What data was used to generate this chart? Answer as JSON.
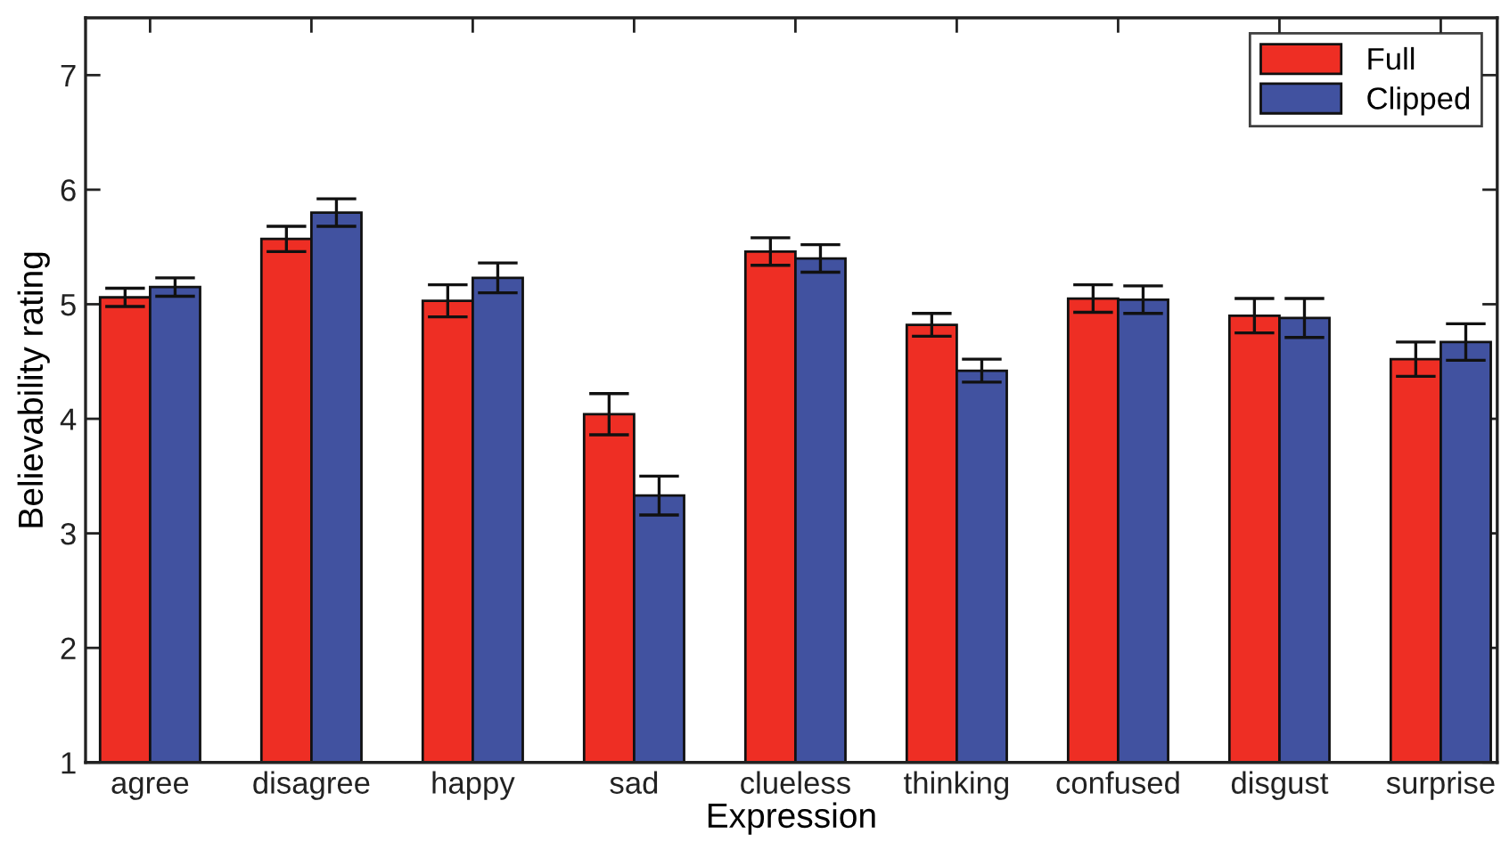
{
  "chart_data": {
    "type": "bar",
    "xlabel": "Expression",
    "ylabel": "Believability rating",
    "categories": [
      "agree",
      "disagree",
      "happy",
      "sad",
      "clueless",
      "thinking",
      "confused",
      "disgust",
      "surprise"
    ],
    "series": [
      {
        "name": "Full",
        "color": "#ee2e24",
        "values": [
          5.06,
          5.57,
          5.03,
          4.04,
          5.46,
          4.82,
          5.05,
          4.9,
          4.52
        ],
        "errors": [
          0.08,
          0.11,
          0.14,
          0.18,
          0.12,
          0.1,
          0.12,
          0.15,
          0.15
        ]
      },
      {
        "name": "Clipped",
        "color": "#4152a0",
        "values": [
          5.15,
          5.8,
          5.23,
          3.33,
          5.4,
          4.42,
          5.04,
          4.88,
          4.67
        ],
        "errors": [
          0.08,
          0.12,
          0.13,
          0.17,
          0.12,
          0.1,
          0.12,
          0.17,
          0.16
        ]
      }
    ],
    "ylim": [
      1,
      7.5
    ],
    "yticks": [
      1,
      2,
      3,
      4,
      5,
      6,
      7
    ],
    "legend": "top right"
  }
}
